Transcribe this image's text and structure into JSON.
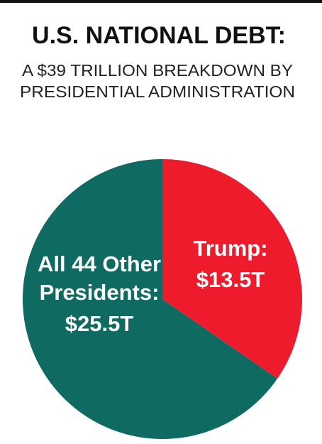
{
  "chart_data": {
    "type": "pie",
    "title": "U.S. NATIONAL DEBT:",
    "subtitle": [
      "A $39 TRILLION BREAKDOWN BY",
      "PRESIDENTIAL ADMINISTRATION"
    ],
    "categories": [
      "Trump:",
      "All 44 Other Presidents:"
    ],
    "values": [
      13.5,
      25.5
    ],
    "value_labels": [
      "$13.5T",
      "$25.5T"
    ],
    "colors": [
      "#ed1b2c",
      "#0f6b62"
    ]
  }
}
